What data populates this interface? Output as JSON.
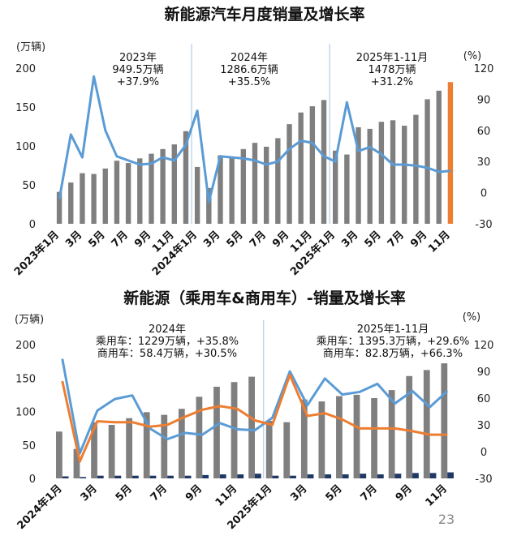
{
  "page_number": "23",
  "colors": {
    "bar_gray": "#7f7f7f",
    "bar_highlight": "#ed7d31",
    "line_blue": "#5b9bd5",
    "line_orange": "#ed7d31",
    "bar_dark": "#1f3864",
    "divider": "#9dc3e6"
  },
  "chart_data": [
    {
      "type": "bar+line",
      "title": "新能源汽车月度销量及增长率",
      "y_left_unit": "(万辆)",
      "y_right_unit": "(%)",
      "ylim_left": [
        0,
        200
      ],
      "ylim_right": [
        -30,
        120
      ],
      "y_left_ticks": [
        "0",
        "50",
        "100",
        "150",
        "200"
      ],
      "y_right_ticks": [
        "-30",
        "0",
        "30",
        "60",
        "90",
        "120"
      ],
      "x_tick_labels": [
        "2023年1月",
        "3月",
        "5月",
        "7月",
        "9月",
        "11月",
        "2024年1月",
        "3月",
        "5月",
        "7月",
        "9月",
        "11月",
        "2025年1月",
        "3月",
        "5月",
        "7月",
        "9月",
        "11月"
      ],
      "x_tick_months": [
        1,
        3,
        5,
        7,
        9,
        11,
        13,
        15,
        17,
        19,
        21,
        23,
        25,
        27,
        29,
        31,
        33,
        35
      ],
      "annotations": [
        {
          "lines": [
            "2023年",
            "949.5万辆",
            "+37.9%"
          ]
        },
        {
          "lines": [
            "2024年",
            "1286.6万辆",
            "+35.5%"
          ]
        },
        {
          "lines": [
            "2025年1-11月",
            "1478万辆",
            "+31.2%"
          ]
        }
      ],
      "series": [
        {
          "kind": "bar",
          "axis": "left",
          "values": [
            41,
            53,
            65,
            64,
            71,
            81,
            78,
            84,
            90,
            96,
            102,
            119,
            73,
            46,
            88,
            85,
            96,
            104,
            99,
            110,
            128,
            143,
            151,
            159,
            94,
            89,
            124,
            122,
            131,
            133,
            126,
            140,
            160,
            171,
            182
          ],
          "highlight_last": true
        },
        {
          "kind": "line",
          "axis": "right",
          "values": [
            -6,
            56,
            34,
            112,
            60,
            35,
            31,
            27,
            28,
            34,
            31,
            46,
            79,
            -9,
            35,
            34,
            33,
            31,
            27,
            30,
            42,
            50,
            48,
            35,
            30,
            87,
            40,
            44,
            37,
            27,
            27,
            26,
            24,
            20,
            21
          ]
        }
      ]
    },
    {
      "type": "bar+line",
      "title": "新能源（乘用车&商用车）-销量及增长率",
      "y_left_unit": "(万辆)",
      "y_right_unit": "(%)",
      "ylim_left": [
        0,
        200
      ],
      "ylim_right": [
        -30,
        120
      ],
      "y_left_ticks": [
        "0",
        "50",
        "100",
        "150",
        "200"
      ],
      "y_right_ticks": [
        "-30",
        "0",
        "30",
        "60",
        "90",
        "120"
      ],
      "x_tick_labels": [
        "2024年1月",
        "3月",
        "5月",
        "7月",
        "9月",
        "11月",
        "2025年1月",
        "3月",
        "5月",
        "7月",
        "9月",
        "11月"
      ],
      "x_tick_months": [
        1,
        3,
        5,
        7,
        9,
        11,
        13,
        15,
        17,
        19,
        21,
        23
      ],
      "annotations": [
        {
          "lines": [
            "2024年",
            "乘用车：1229万辆，+35.8%",
            "商用车：58.4万辆，+30.5%"
          ]
        },
        {
          "lines": [
            "2025年1-11月",
            "乘用车：1395.3万辆，+29.6%",
            "商用车：82.8万辆，+66.3%"
          ]
        }
      ],
      "series": [
        {
          "kind": "bar",
          "axis": "left",
          "values": [
            70,
            44,
            84,
            80,
            90,
            99,
            95,
            104,
            122,
            137,
            144,
            152,
            86,
            84,
            118,
            115,
            123,
            125,
            120,
            132,
            153,
            162,
            172
          ]
        },
        {
          "kind": "bar",
          "axis": "left",
          "values": [
            3,
            2,
            4,
            4,
            4,
            4,
            4,
            4,
            5,
            6,
            6,
            7,
            4,
            4,
            6,
            6,
            6,
            7,
            6,
            7,
            8,
            8,
            9
          ]
        },
        {
          "kind": "line",
          "axis": "right",
          "values": [
            104,
            -2,
            46,
            59,
            63,
            26,
            14,
            21,
            19,
            32,
            25,
            24,
            38,
            90,
            52,
            82,
            64,
            67,
            76,
            54,
            68,
            50,
            68
          ]
        },
        {
          "kind": "line",
          "axis": "right",
          "values": [
            79,
            -11,
            34,
            33,
            33,
            28,
            30,
            39,
            47,
            51,
            48,
            35,
            30,
            86,
            40,
            43,
            36,
            26,
            26,
            26,
            23,
            19,
            19
          ]
        }
      ]
    }
  ]
}
